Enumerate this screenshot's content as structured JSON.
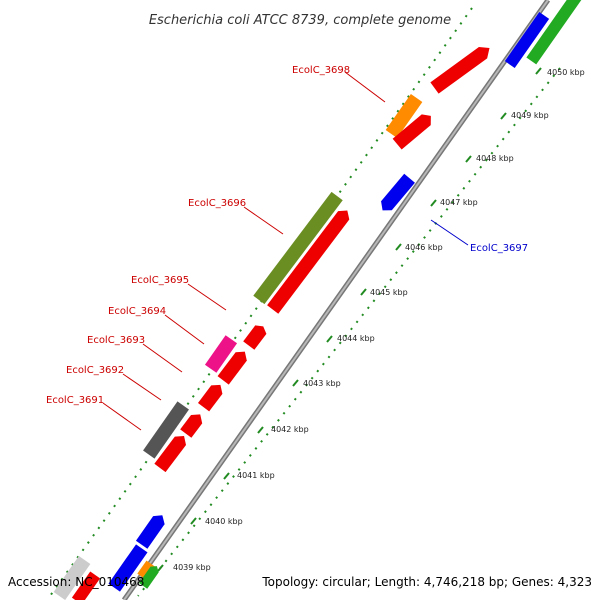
{
  "title": "Escherichia coli ATCC 8739, complete genome",
  "footer": {
    "accession": "Accession: NC_010468",
    "topology": "Topology: circular; Length: 4,746,218 bp; Genes: 4,323"
  },
  "colors": {
    "backbone": "#888888",
    "tick": "#228b22",
    "red_label": "#cc0000",
    "blue_label": "#0000cc"
  },
  "kbp_labels": [
    "4039 kbp",
    "4040 kbp",
    "4041 kbp",
    "4042 kbp",
    "4043 kbp",
    "4044 kbp",
    "4045 kbp",
    "4046 kbp",
    "4047 kbp",
    "4048 kbp",
    "4049 kbp",
    "4050 kbp"
  ],
  "gene_labels": [
    {
      "text": "EcolC_3698",
      "color": "#cc0000"
    },
    {
      "text": "EcolC_3696",
      "color": "#cc0000"
    },
    {
      "text": "EcolC_3695",
      "color": "#cc0000"
    },
    {
      "text": "EcolC_3694",
      "color": "#cc0000"
    },
    {
      "text": "EcolC_3693",
      "color": "#cc0000"
    },
    {
      "text": "EcolC_3692",
      "color": "#cc0000"
    },
    {
      "text": "EcolC_3691",
      "color": "#cc0000"
    },
    {
      "text": "EcolC_3697",
      "color": "#0000cc"
    }
  ],
  "feature_colors": [
    "red",
    "orange",
    "olive",
    "magenta",
    "gray",
    "blue",
    "green",
    "light-gray"
  ]
}
